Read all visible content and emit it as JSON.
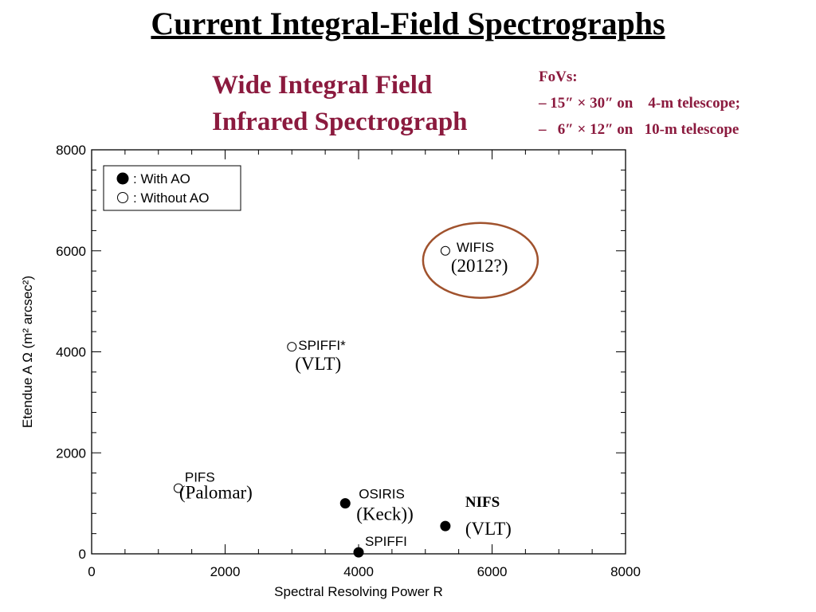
{
  "title": "Current Integral-Field Spectrographs",
  "subtitle_lines": [
    "Wide Integral Field",
    "Infrared Spectrograph"
  ],
  "fovs": {
    "heading": "FoVs:",
    "line1": "– 15″ × 30″ on    4-m telescope;",
    "line2": "–   6″ × 12″ on   10-m telescope"
  },
  "colors": {
    "accent": "#8b1a3e",
    "highlight_circle": "#a0522d"
  },
  "chart_data": {
    "type": "scatter",
    "title": "",
    "xlabel": "Spectral Resolving Power R",
    "ylabel": "Etendue A Ω (m² arcsec²)",
    "xlim": [
      0,
      8000
    ],
    "ylim": [
      0,
      8000
    ],
    "xticks": [
      "0",
      "2000",
      "4000",
      "6000",
      "8000"
    ],
    "yticks": [
      "0",
      "2000",
      "4000",
      "6000",
      "8000"
    ],
    "grid": false,
    "legend": {
      "placement": "top-left",
      "entries": [
        {
          "marker": "filled-circle",
          "label": ": With AO"
        },
        {
          "marker": "open-circle",
          "label": ": Without AO"
        }
      ]
    },
    "points": [
      {
        "name": "WIFIS",
        "x": 5300,
        "y": 6000,
        "ao": false,
        "note": "(2012?)",
        "highlighted": true
      },
      {
        "name": "SPIFFI*",
        "x": 3000,
        "y": 4100,
        "ao": false,
        "note": "(VLT)"
      },
      {
        "name": "PIFS",
        "x": 1300,
        "y": 1300,
        "ao": false,
        "note": "(Palomar)"
      },
      {
        "name": "OSIRIS",
        "x": 3800,
        "y": 1000,
        "ao": true,
        "note": "(Keck))"
      },
      {
        "name": "NIFS",
        "x": 5300,
        "y": 550,
        "ao": true,
        "note": "(VLT)"
      },
      {
        "name": "SPIFFI",
        "x": 4000,
        "y": 30,
        "ao": true,
        "note": ""
      }
    ]
  }
}
